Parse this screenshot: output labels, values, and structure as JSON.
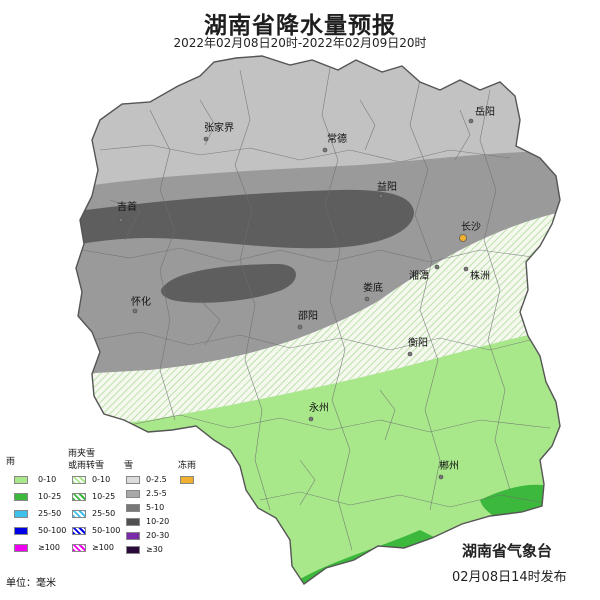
{
  "title": "湖南省降水量预报",
  "subtitle": "2022年02月08日20时-2022年02月09日20时",
  "cities": [
    {
      "name": "岳阳",
      "pos": [
        471,
        121
      ]
    },
    {
      "name": "张家界",
      "pos": [
        206,
        139
      ]
    },
    {
      "name": "常德",
      "pos": [
        325,
        150
      ]
    },
    {
      "name": "益阳",
      "pos": [
        381,
        196
      ]
    },
    {
      "name": "吉首",
      "pos": [
        121,
        220
      ]
    },
    {
      "name": "长沙",
      "pos": [
        463,
        238
      ]
    },
    {
      "name": "湘潭",
      "pos": [
        437,
        267
      ]
    },
    {
      "name": "株洲",
      "pos": [
        466,
        269
      ]
    },
    {
      "name": "娄底",
      "pos": [
        367,
        299
      ]
    },
    {
      "name": "怀化",
      "pos": [
        135,
        311
      ]
    },
    {
      "name": "邵阳",
      "pos": [
        300,
        327
      ]
    },
    {
      "name": "衡阳",
      "pos": [
        410,
        354
      ]
    },
    {
      "name": "永州",
      "pos": [
        311,
        419
      ]
    },
    {
      "name": "郴州",
      "pos": [
        441,
        477
      ]
    }
  ],
  "legend": {
    "rain": {
      "header": "雨",
      "items": [
        {
          "label": "0-10",
          "color": "#a8e88a"
        },
        {
          "label": "10-25",
          "color": "#3cb83c"
        },
        {
          "label": "25-50",
          "color": "#3ec0ec"
        },
        {
          "label": "50-100",
          "color": "#0000e8"
        },
        {
          "label": "≥100",
          "color": "#f000f0"
        }
      ]
    },
    "mixed": {
      "header_line1": "雨夹雪",
      "header_line2": "或雨转雪",
      "items": [
        {
          "label": "0-10",
          "color": "#a8e88a"
        },
        {
          "label": "10-25",
          "color": "#3cb83c"
        },
        {
          "label": "25-50",
          "color": "#3ec0ec"
        },
        {
          "label": "50-100",
          "color": "#0000e8"
        },
        {
          "label": "≥100",
          "color": "#f000f0"
        }
      ]
    },
    "snow": {
      "header": "雪",
      "items": [
        {
          "label": "0-2.5",
          "color": "#dcdcdc"
        },
        {
          "label": "2.5-5",
          "color": "#a8a8a8"
        },
        {
          "label": "5-10",
          "color": "#787878"
        },
        {
          "label": "10-20",
          "color": "#505050"
        },
        {
          "label": "20-30",
          "color": "#7a2aa8"
        },
        {
          "label": "≥30",
          "color": "#2a0a3a"
        }
      ]
    },
    "freezing": {
      "header": "冻雨",
      "color": "#f0b030"
    }
  },
  "unit": "单位：毫米",
  "issuer": "湖南省气象台",
  "issued": "02月08日14时发布",
  "colors": {
    "light_gray": "#c2c2c2",
    "mid_gray": "#9a9a9a",
    "dark_gray": "#5e5e5e",
    "light_green": "#a8e88a",
    "green": "#3cb83c",
    "sleet_hatch": "#a8e88a",
    "border": "#666666"
  }
}
